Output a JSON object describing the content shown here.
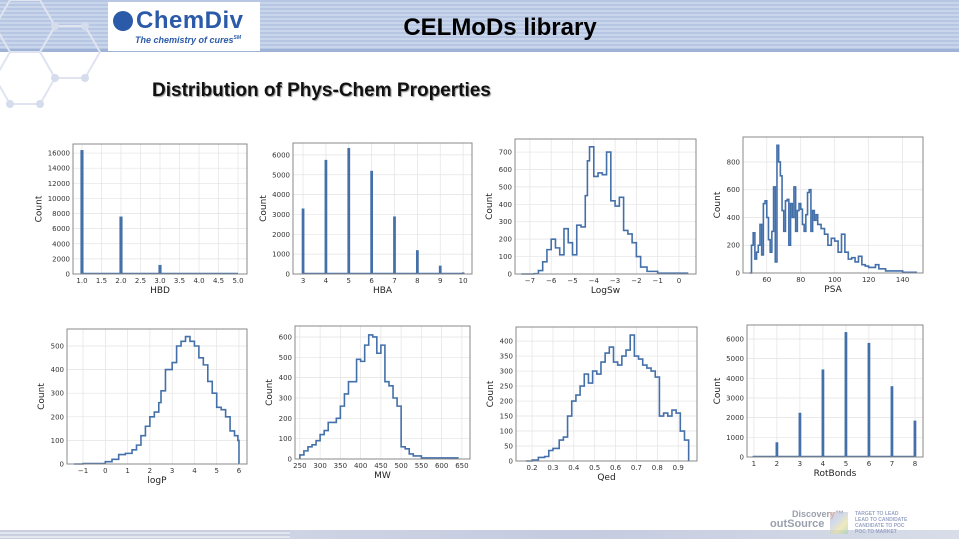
{
  "header": {
    "title": "CELMoDs library",
    "logo_name": "ChemDiv",
    "logo_tagline": "The chemistry of cures",
    "logo_sm": "SM"
  },
  "page": {
    "subtitle": "Distribution of Phys-Chem Properties"
  },
  "footer": {
    "discovery": "Discovery",
    "outsource": "outSource",
    "tm": "™",
    "lines": [
      "TARGET TO LEAD",
      "LEAD TO CANDIDATE",
      "CANDIDATE TO POC",
      "POC TO MARKET"
    ]
  },
  "colors": {
    "series": "#4470aa",
    "grid": "#e3e3e3",
    "frame": "#888888"
  },
  "chart_data": [
    {
      "type": "bar",
      "xlabel": "HBD",
      "ylabel": "Count",
      "xlim": [
        0.77,
        5.23
      ],
      "ylim": [
        0,
        17200
      ],
      "xticks": [
        1.0,
        1.5,
        2.0,
        2.5,
        3.0,
        3.5,
        4.0,
        4.5,
        5.0
      ],
      "xtick_labels": [
        "1.0",
        "1.5",
        "2.0",
        "2.5",
        "3.0",
        "3.5",
        "4.0",
        "4.5",
        "5.0"
      ],
      "yticks": [
        0,
        2000,
        4000,
        6000,
        8000,
        10000,
        12000,
        14000,
        16000
      ],
      "ytick_labels": [
        "0",
        "2000",
        "4000",
        "6000",
        "8000",
        "10000",
        "12000",
        "14000",
        "16000"
      ],
      "x": [
        1,
        2,
        3,
        4,
        5
      ],
      "values": [
        16400,
        7600,
        1200,
        100,
        20
      ],
      "barwidth": 0.08
    },
    {
      "type": "bar",
      "xlabel": "HBA",
      "ylabel": "Count",
      "xlim": [
        2.56,
        10.39
      ],
      "ylim": [
        0,
        6600
      ],
      "xticks": [
        3,
        4,
        5,
        6,
        7,
        8,
        9,
        10
      ],
      "xtick_labels": [
        "3",
        "4",
        "5",
        "6",
        "7",
        "8",
        "9",
        "10"
      ],
      "yticks": [
        0,
        1000,
        2000,
        3000,
        4000,
        5000,
        6000
      ],
      "ytick_labels": [
        "0",
        "1000",
        "2000",
        "3000",
        "4000",
        "5000",
        "6000"
      ],
      "x": [
        3,
        4,
        5,
        6,
        7,
        8,
        9,
        10
      ],
      "values": [
        3300,
        5750,
        6350,
        5200,
        2900,
        1200,
        420,
        80
      ],
      "barwidth": 0.12
    },
    {
      "type": "line",
      "xlabel": "LogSw",
      "ylabel": "Count",
      "xlim": [
        -7.7,
        0.8
      ],
      "ylim": [
        0,
        775
      ],
      "xticks": [
        -7,
        -6,
        -5,
        -4,
        -3,
        -2,
        -1,
        0
      ],
      "xtick_labels": [
        "−7",
        "−6",
        "−5",
        "−4",
        "−3",
        "−2",
        "−1",
        "0"
      ],
      "yticks": [
        0,
        100,
        200,
        300,
        400,
        500,
        600,
        700
      ],
      "ytick_labels": [
        "0",
        "100",
        "200",
        "300",
        "400",
        "500",
        "600",
        "700"
      ],
      "x": [
        -7.4,
        -6.8,
        -6.6,
        -6.4,
        -6.2,
        -6.0,
        -5.8,
        -5.6,
        -5.4,
        -5.2,
        -5.0,
        -4.8,
        -4.6,
        -4.4,
        -4.3,
        -4.2,
        -4.0,
        -3.8,
        -3.6,
        -3.4,
        -3.2,
        -3.0,
        -2.8,
        -2.6,
        -2.4,
        -2.2,
        -2.0,
        -1.8,
        -1.5,
        -1.0,
        0.4
      ],
      "values": [
        0,
        2,
        20,
        70,
        140,
        200,
        150,
        110,
        260,
        180,
        110,
        280,
        270,
        450,
        650,
        730,
        560,
        580,
        570,
        700,
        420,
        390,
        440,
        250,
        230,
        180,
        100,
        40,
        15,
        5,
        0
      ]
    },
    {
      "type": "line",
      "xlabel": "PSA",
      "ylabel": "Count",
      "xlim": [
        46,
        152
      ],
      "ylim": [
        0,
        980
      ],
      "xticks": [
        60,
        80,
        100,
        120,
        140
      ],
      "xtick_labels": [
        "60",
        "80",
        "100",
        "120",
        "140"
      ],
      "yticks": [
        0,
        200,
        400,
        600,
        800
      ],
      "ytick_labels": [
        "0",
        "200",
        "400",
        "600",
        "800"
      ],
      "x": [
        50,
        51,
        52,
        53,
        54,
        55,
        56,
        57,
        58,
        59,
        60,
        61,
        62,
        63,
        64,
        65,
        66,
        67,
        68,
        69,
        70,
        71,
        72,
        73,
        74,
        75,
        76,
        77,
        78,
        79,
        80,
        81,
        82,
        83,
        84,
        85,
        86,
        87,
        88,
        89,
        90,
        92,
        94,
        96,
        98,
        100,
        102,
        104,
        106,
        108,
        110,
        112,
        114,
        116,
        118,
        120,
        124,
        126,
        130,
        140,
        148
      ],
      "values": [
        0,
        200,
        290,
        100,
        150,
        200,
        350,
        130,
        500,
        520,
        400,
        240,
        150,
        300,
        620,
        80,
        920,
        800,
        700,
        450,
        300,
        520,
        530,
        200,
        500,
        400,
        620,
        300,
        450,
        500,
        460,
        350,
        300,
        420,
        580,
        600,
        300,
        450,
        380,
        420,
        350,
        320,
        280,
        200,
        250,
        230,
        150,
        280,
        150,
        100,
        110,
        80,
        120,
        60,
        50,
        40,
        60,
        30,
        15,
        5,
        0
      ]
    },
    {
      "type": "line",
      "xlabel": "logP",
      "ylabel": "Count",
      "xlim": [
        -1.72,
        6.36
      ],
      "ylim": [
        0,
        572
      ],
      "xticks": [
        -1,
        0,
        1,
        2,
        3,
        4,
        5,
        6
      ],
      "xtick_labels": [
        "−1",
        "0",
        "1",
        "2",
        "3",
        "4",
        "5",
        "6"
      ],
      "yticks": [
        0,
        100,
        200,
        300,
        400,
        500
      ],
      "ytick_labels": [
        "0",
        "100",
        "200",
        "300",
        "400",
        "500"
      ],
      "x": [
        -1.4,
        -1,
        0,
        0.3,
        0.6,
        0.9,
        1.2,
        1.4,
        1.6,
        1.8,
        2.0,
        2.2,
        2.4,
        2.5,
        2.7,
        2.9,
        3.0,
        3.2,
        3.4,
        3.6,
        3.8,
        4.0,
        4.2,
        4.4,
        4.6,
        4.8,
        5.0,
        5.2,
        5.4,
        5.6,
        5.8,
        5.95,
        6.0
      ],
      "values": [
        0,
        2,
        10,
        20,
        40,
        45,
        60,
        80,
        120,
        160,
        200,
        220,
        260,
        310,
        400,
        400,
        430,
        500,
        520,
        540,
        520,
        500,
        450,
        420,
        350,
        300,
        240,
        230,
        200,
        140,
        120,
        100,
        0
      ]
    },
    {
      "type": "line",
      "xlabel": "MW",
      "ylabel": "Count",
      "xlim": [
        238,
        670
      ],
      "ylim": [
        0,
        654
      ],
      "xticks": [
        250,
        300,
        350,
        400,
        450,
        500,
        550,
        600,
        650
      ],
      "xtick_labels": [
        "250",
        "300",
        "350",
        "400",
        "450",
        "500",
        "550",
        "600",
        "650"
      ],
      "yticks": [
        0,
        100,
        200,
        300,
        400,
        500,
        600
      ],
      "ytick_labels": [
        "0",
        "100",
        "200",
        "300",
        "400",
        "500",
        "600"
      ],
      "x": [
        250,
        260,
        270,
        280,
        290,
        300,
        310,
        320,
        330,
        340,
        350,
        360,
        370,
        380,
        390,
        400,
        410,
        420,
        430,
        440,
        450,
        460,
        470,
        480,
        490,
        500,
        510,
        520,
        530,
        550,
        640
      ],
      "values": [
        20,
        40,
        60,
        70,
        90,
        120,
        140,
        180,
        180,
        200,
        260,
        320,
        380,
        380,
        490,
        480,
        560,
        610,
        600,
        520,
        560,
        380,
        360,
        300,
        260,
        60,
        50,
        25,
        15,
        5,
        0
      ]
    },
    {
      "type": "line",
      "xlabel": "Qed",
      "ylabel": "Count",
      "xlim": [
        0.123,
        0.99
      ],
      "ylim": [
        0,
        447
      ],
      "xticks": [
        0.2,
        0.3,
        0.4,
        0.5,
        0.6,
        0.7,
        0.8,
        0.9
      ],
      "xtick_labels": [
        "0.2",
        "0.3",
        "0.4",
        "0.5",
        "0.6",
        "0.7",
        "0.8",
        "0.9"
      ],
      "yticks": [
        0,
        50,
        100,
        150,
        200,
        250,
        300,
        350,
        400
      ],
      "ytick_labels": [
        "0",
        "50",
        "100",
        "150",
        "200",
        "250",
        "300",
        "350",
        "400"
      ],
      "x": [
        0.17,
        0.2,
        0.23,
        0.26,
        0.28,
        0.3,
        0.33,
        0.35,
        0.37,
        0.39,
        0.41,
        0.43,
        0.45,
        0.47,
        0.49,
        0.51,
        0.53,
        0.55,
        0.57,
        0.59,
        0.61,
        0.63,
        0.65,
        0.67,
        0.69,
        0.71,
        0.73,
        0.75,
        0.77,
        0.79,
        0.81,
        0.83,
        0.85,
        0.87,
        0.89,
        0.91,
        0.93,
        0.95
      ],
      "values": [
        0,
        3,
        12,
        15,
        35,
        42,
        70,
        80,
        150,
        200,
        220,
        250,
        290,
        260,
        300,
        290,
        330,
        360,
        380,
        330,
        320,
        350,
        370,
        420,
        350,
        340,
        320,
        310,
        300,
        280,
        150,
        160,
        150,
        170,
        160,
        100,
        70,
        0
      ]
    },
    {
      "type": "bar",
      "xlabel": "RotBonds",
      "ylabel": "Count",
      "xlim": [
        0.7,
        8.35
      ],
      "ylim": [
        0,
        6710
      ],
      "xticks": [
        1,
        2,
        3,
        4,
        5,
        6,
        7,
        8
      ],
      "xtick_labels": [
        "1",
        "2",
        "3",
        "4",
        "5",
        "6",
        "7",
        "8"
      ],
      "yticks": [
        0,
        1000,
        2000,
        3000,
        4000,
        5000,
        6000
      ],
      "ytick_labels": [
        "0",
        "1000",
        "2000",
        "3000",
        "4000",
        "5000",
        "6000"
      ],
      "x": [
        1,
        2,
        3,
        4,
        5,
        6,
        7,
        8
      ],
      "values": [
        60,
        750,
        2250,
        4450,
        6350,
        5800,
        3600,
        1850
      ],
      "barwidth": 0.12
    }
  ]
}
